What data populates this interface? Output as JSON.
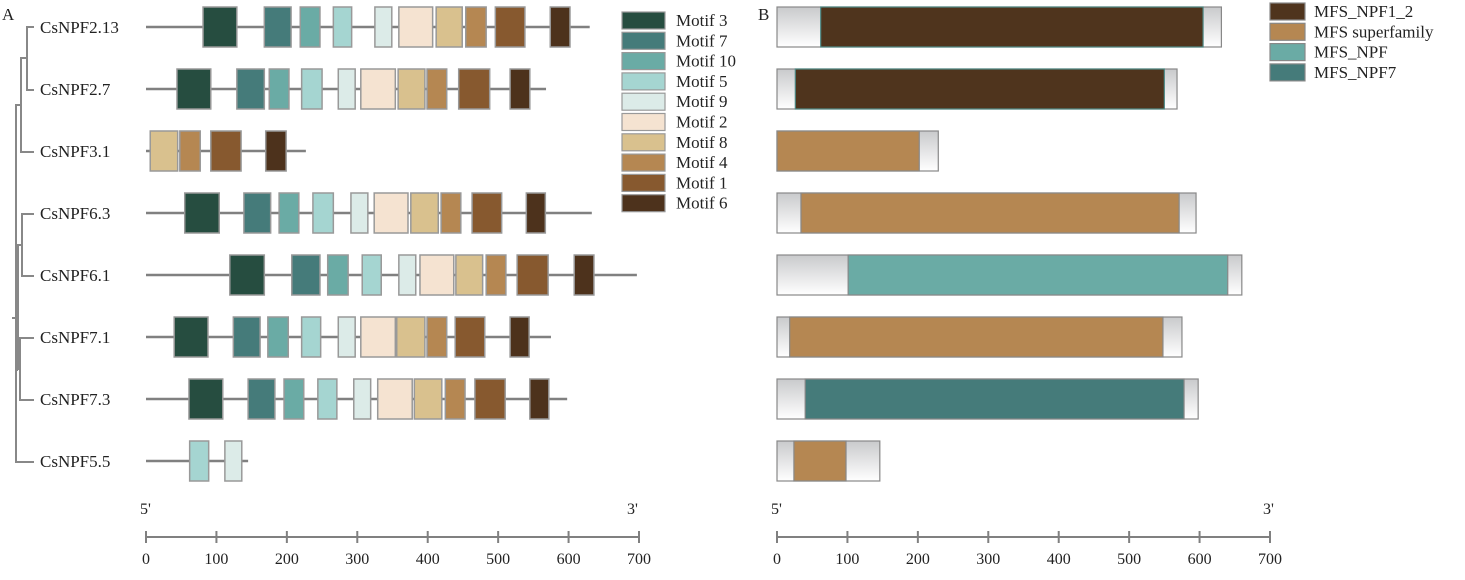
{
  "panel_a": {
    "label": "A",
    "five_prime": "5'",
    "three_prime": "3'",
    "axis": {
      "min": 0,
      "max": 700,
      "ticks": [
        "0",
        "100",
        "200",
        "300",
        "400",
        "500",
        "600",
        "700"
      ]
    },
    "motif_legend": [
      {
        "id": "M3",
        "label": "Motif 3",
        "color": "#264d40"
      },
      {
        "id": "M7",
        "label": "Motif 7",
        "color": "#457b7a"
      },
      {
        "id": "M10",
        "label": "Motif 10",
        "color": "#6aaba5"
      },
      {
        "id": "M5",
        "label": "Motif 5",
        "color": "#a5d5d1"
      },
      {
        "id": "M9",
        "label": "Motif 9",
        "color": "#dcebe8"
      },
      {
        "id": "M2",
        "label": "Motif 2",
        "color": "#f5e3d1"
      },
      {
        "id": "M8",
        "label": "Motif 8",
        "color": "#d9c18e"
      },
      {
        "id": "M4",
        "label": "Motif 4",
        "color": "#b58752"
      },
      {
        "id": "M1",
        "label": "Motif 1",
        "color": "#87592f"
      },
      {
        "id": "M6",
        "label": "Motif 6",
        "color": "#4d321c"
      }
    ],
    "genes": [
      {
        "name": "CsNPF2.13",
        "length": 630,
        "motifs": [
          [
            "M3",
            81,
            129
          ],
          [
            "M7",
            168,
            206
          ],
          [
            "M10",
            219,
            247
          ],
          [
            "M5",
            266,
            292
          ],
          [
            "M9",
            325,
            349
          ],
          [
            "M2",
            359,
            407
          ],
          [
            "M8",
            412,
            449
          ],
          [
            "M4",
            454,
            483
          ],
          [
            "M1",
            496,
            538
          ],
          [
            "M6",
            574,
            602
          ]
        ]
      },
      {
        "name": "CsNPF2.7",
        "length": 568,
        "motifs": [
          [
            "M3",
            44,
            92
          ],
          [
            "M7",
            129,
            168
          ],
          [
            "M10",
            175,
            203
          ],
          [
            "M5",
            221,
            250
          ],
          [
            "M9",
            273,
            297
          ],
          [
            "M2",
            305,
            354
          ],
          [
            "M8",
            358,
            396
          ],
          [
            "M4",
            399,
            427
          ],
          [
            "M1",
            444,
            488
          ],
          [
            "M6",
            517,
            545
          ]
        ]
      },
      {
        "name": "CsNPF3.1",
        "length": 227,
        "motifs": [
          [
            "M8",
            6,
            45
          ],
          [
            "M4",
            48,
            77
          ],
          [
            "M1",
            92,
            135
          ],
          [
            "M6",
            170,
            199
          ]
        ]
      },
      {
        "name": "CsNPF6.3",
        "length": 633,
        "motifs": [
          [
            "M3",
            55,
            104
          ],
          [
            "M7",
            139,
            177
          ],
          [
            "M10",
            189,
            217
          ],
          [
            "M5",
            237,
            266
          ],
          [
            "M9",
            291,
            315
          ],
          [
            "M2",
            324,
            372
          ],
          [
            "M8",
            376,
            415
          ],
          [
            "M4",
            419,
            447
          ],
          [
            "M1",
            463,
            505
          ],
          [
            "M6",
            540,
            567
          ]
        ]
      },
      {
        "name": "CsNPF6.1",
        "length": 697,
        "motifs": [
          [
            "M3",
            119,
            168
          ],
          [
            "M7",
            207,
            247
          ],
          [
            "M10",
            258,
            287
          ],
          [
            "M5",
            307,
            334
          ],
          [
            "M9",
            359,
            383
          ],
          [
            "M2",
            389,
            437
          ],
          [
            "M8",
            440,
            478
          ],
          [
            "M4",
            483,
            511
          ],
          [
            "M1",
            527,
            571
          ],
          [
            "M6",
            608,
            636
          ]
        ]
      },
      {
        "name": "CsNPF7.1",
        "length": 575,
        "motifs": [
          [
            "M3",
            40,
            88
          ],
          [
            "M7",
            124,
            162
          ],
          [
            "M10",
            173,
            202
          ],
          [
            "M5",
            221,
            248
          ],
          [
            "M9",
            273,
            297
          ],
          [
            "M2",
            305,
            354
          ],
          [
            "M8",
            356,
            396
          ],
          [
            "M4",
            399,
            427
          ],
          [
            "M1",
            439,
            481
          ],
          [
            "M6",
            517,
            544
          ]
        ]
      },
      {
        "name": "CsNPF7.3",
        "length": 598,
        "motifs": [
          [
            "M3",
            61,
            109
          ],
          [
            "M7",
            145,
            183
          ],
          [
            "M10",
            196,
            224
          ],
          [
            "M5",
            244,
            271
          ],
          [
            "M9",
            295,
            319
          ],
          [
            "M2",
            329,
            378
          ],
          [
            "M8",
            381,
            420
          ],
          [
            "M4",
            425,
            453
          ],
          [
            "M1",
            467,
            510
          ],
          [
            "M6",
            545,
            572
          ]
        ]
      },
      {
        "name": "CsNPF5.5",
        "length": 145,
        "motifs": [
          [
            "M5",
            62,
            89
          ],
          [
            "M9",
            112,
            136
          ]
        ]
      }
    ]
  },
  "panel_b": {
    "label": "B",
    "five_prime": "5'",
    "three_prime": "3'",
    "axis": {
      "min": 0,
      "max": 700,
      "ticks": [
        "0",
        "100",
        "200",
        "300",
        "400",
        "500",
        "600",
        "700"
      ]
    },
    "domain_legend": [
      {
        "id": "NPF1_2",
        "label": "MFS_NPF1_2",
        "color": "#4f341d"
      },
      {
        "id": "SUPER",
        "label": "MFS superfamily",
        "color": "#b58752"
      },
      {
        "id": "NPF",
        "label": "MFS_NPF",
        "color": "#6aaba5"
      },
      {
        "id": "NPF7",
        "label": "MFS_NPF7",
        "color": "#457b7a"
      }
    ],
    "proteins": [
      {
        "length": 631,
        "domain": [
          "NPF1_2",
          62,
          605
        ]
      },
      {
        "length": 568,
        "domain": [
          "NPF1_2",
          26,
          550
        ]
      },
      {
        "length": 229,
        "domain": [
          "SUPER",
          0,
          202
        ]
      },
      {
        "length": 595,
        "domain": [
          "SUPER",
          34,
          571
        ]
      },
      {
        "length": 660,
        "domain": [
          "NPF",
          101,
          640
        ]
      },
      {
        "length": 575,
        "domain": [
          "SUPER",
          18,
          548
        ]
      },
      {
        "length": 598,
        "domain": [
          "NPF7",
          40,
          578
        ]
      },
      {
        "length": 146,
        "domain": [
          "SUPER",
          24,
          98
        ]
      }
    ]
  }
}
